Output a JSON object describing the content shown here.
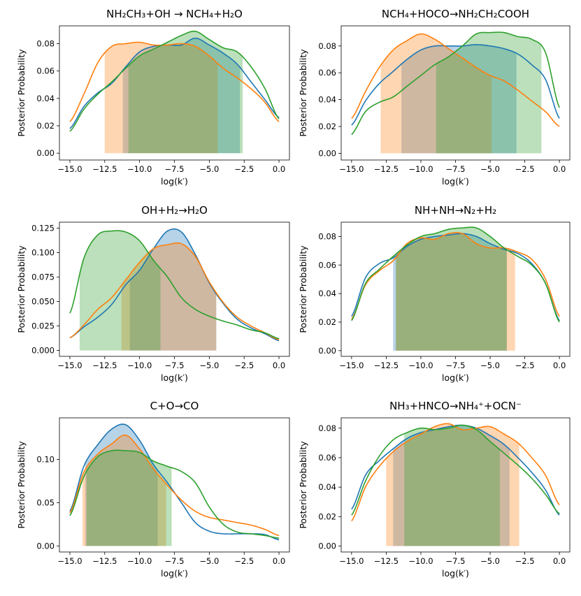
{
  "figure_name": "Posterior probability distributions of log(k') for six reactions",
  "colors": {
    "blue": "#1f77b4",
    "orange": "#ff7f0e",
    "green": "#2ca02c"
  },
  "chart_data": [
    {
      "type": "area",
      "title": "NH₂CH₃+OH → NCH₄+H₂O",
      "xlabel": "log(k′)",
      "ylabel": "Posterior Probability",
      "xlim": [
        -15.75,
        0.75
      ],
      "ylim": [
        -0.005,
        0.093
      ],
      "xticks": [
        -15.0,
        -12.5,
        -10.0,
        -7.5,
        -5.0,
        -2.5,
        0.0
      ],
      "xtick_labels": [
        "−15.0",
        "−12.5",
        "−10.0",
        "−7.5",
        "−5.0",
        "−2.5",
        "0.0"
      ],
      "yticks": [
        0.0,
        0.02,
        0.04,
        0.06,
        0.08
      ],
      "ytick_labels": [
        "0.00",
        "0.02",
        "0.04",
        "0.06",
        "0.08"
      ],
      "series": [
        {
          "name": "blue",
          "color": "blue",
          "shade": [
            -11.2,
            -2.8
          ],
          "x": [
            -15,
            -14,
            -13,
            -12,
            -11,
            -10,
            -9,
            -8,
            -7,
            -6,
            -5,
            -4,
            -3,
            -2,
            -1,
            0
          ],
          "y": [
            0.018,
            0.034,
            0.044,
            0.051,
            0.063,
            0.074,
            0.078,
            0.079,
            0.079,
            0.084,
            0.079,
            0.073,
            0.065,
            0.052,
            0.039,
            0.026
          ]
        },
        {
          "name": "orange",
          "color": "orange",
          "shade": [
            -12.5,
            -4.4
          ],
          "x": [
            -15,
            -14,
            -13,
            -12,
            -11,
            -10,
            -9,
            -8,
            -7,
            -6,
            -5,
            -4,
            -3,
            -2,
            -1,
            0
          ],
          "y": [
            0.023,
            0.043,
            0.066,
            0.078,
            0.08,
            0.081,
            0.079,
            0.079,
            0.08,
            0.078,
            0.071,
            0.062,
            0.055,
            0.047,
            0.037,
            0.023
          ]
        },
        {
          "name": "green",
          "color": "green",
          "shade": [
            -10.8,
            -2.6
          ],
          "x": [
            -15,
            -14,
            -13,
            -12,
            -11,
            -10,
            -9,
            -8,
            -7,
            -6,
            -5,
            -4,
            -3,
            -2,
            -1,
            0
          ],
          "y": [
            0.016,
            0.032,
            0.043,
            0.052,
            0.062,
            0.071,
            0.076,
            0.081,
            0.086,
            0.089,
            0.083,
            0.077,
            0.074,
            0.063,
            0.047,
            0.025
          ]
        }
      ]
    },
    {
      "type": "area",
      "title": "NCH₄+HOCO→NH₂CH₂COOH",
      "xlabel": "log(k′)",
      "ylabel": "Posterior Probability",
      "xlim": [
        -15.75,
        0.75
      ],
      "ylim": [
        -0.005,
        0.095
      ],
      "xticks": [
        -15.0,
        -12.5,
        -10.0,
        -7.5,
        -5.0,
        -2.5,
        0.0
      ],
      "xtick_labels": [
        "−15.0",
        "−12.5",
        "−10.0",
        "−7.5",
        "−5.0",
        "−2.5",
        "0.0"
      ],
      "yticks": [
        0.0,
        0.02,
        0.04,
        0.06,
        0.08
      ],
      "ytick_labels": [
        "0.00",
        "0.02",
        "0.04",
        "0.06",
        "0.08"
      ],
      "series": [
        {
          "name": "blue",
          "color": "blue",
          "shade": [
            -11.4,
            -3.1
          ],
          "x": [
            -15,
            -14,
            -13,
            -12,
            -11,
            -10,
            -9,
            -8,
            -7,
            -6,
            -5,
            -4,
            -3,
            -2,
            -1,
            0
          ],
          "y": [
            0.021,
            0.039,
            0.052,
            0.061,
            0.07,
            0.077,
            0.08,
            0.08,
            0.08,
            0.081,
            0.08,
            0.078,
            0.074,
            0.066,
            0.055,
            0.026
          ]
        },
        {
          "name": "orange",
          "color": "orange",
          "shade": [
            -12.9,
            -4.9
          ],
          "x": [
            -15,
            -14,
            -13,
            -12,
            -11,
            -10,
            -9,
            -8,
            -7,
            -6,
            -5,
            -4,
            -3,
            -2,
            -1,
            0
          ],
          "y": [
            0.026,
            0.046,
            0.064,
            0.077,
            0.084,
            0.089,
            0.085,
            0.078,
            0.071,
            0.064,
            0.058,
            0.054,
            0.047,
            0.039,
            0.031,
            0.02
          ]
        },
        {
          "name": "green",
          "color": "green",
          "shade": [
            -8.9,
            -1.3
          ],
          "x": [
            -15,
            -14,
            -13,
            -12,
            -11,
            -10,
            -9,
            -8,
            -7,
            -6,
            -5,
            -4,
            -3,
            -2,
            -1,
            0
          ],
          "y": [
            0.014,
            0.031,
            0.038,
            0.042,
            0.05,
            0.058,
            0.066,
            0.072,
            0.08,
            0.089,
            0.09,
            0.09,
            0.087,
            0.085,
            0.075,
            0.034
          ]
        }
      ]
    },
    {
      "type": "area",
      "title": "OH+H₂→H₂O",
      "xlabel": "log(k′)",
      "ylabel": "Posterior Probability",
      "xlim": [
        -15.75,
        0.75
      ],
      "ylim": [
        -0.006,
        0.131
      ],
      "xticks": [
        -15.0,
        -12.5,
        -10.0,
        -7.5,
        -5.0,
        -2.5,
        0.0
      ],
      "xtick_labels": [
        "−15.0",
        "−12.5",
        "−10.0",
        "−7.5",
        "−5.0",
        "−2.5",
        "0.0"
      ],
      "yticks": [
        0.0,
        0.025,
        0.05,
        0.075,
        0.1,
        0.125
      ],
      "ytick_labels": [
        "0.000",
        "0.025",
        "0.050",
        "0.075",
        "0.100",
        "0.125"
      ],
      "series": [
        {
          "name": "blue",
          "color": "blue",
          "shade": [
            -10.7,
            -4.5
          ],
          "x": [
            -15,
            -14,
            -13,
            -12,
            -11,
            -10,
            -9,
            -8,
            -7,
            -6,
            -5,
            -4,
            -3,
            -2,
            -1,
            0
          ],
          "y": [
            0.013,
            0.024,
            0.034,
            0.047,
            0.067,
            0.082,
            0.104,
            0.122,
            0.121,
            0.098,
            0.069,
            0.048,
            0.032,
            0.023,
            0.017,
            0.01
          ]
        },
        {
          "name": "orange",
          "color": "orange",
          "shade": [
            -11.3,
            -4.5
          ],
          "x": [
            -15,
            -14,
            -13,
            -12,
            -11,
            -10,
            -9,
            -8,
            -7,
            -6,
            -5,
            -4,
            -3,
            -2,
            -1,
            0
          ],
          "y": [
            0.013,
            0.026,
            0.042,
            0.054,
            0.072,
            0.09,
            0.104,
            0.108,
            0.109,
            0.096,
            0.07,
            0.049,
            0.034,
            0.025,
            0.018,
            0.011
          ]
        },
        {
          "name": "green",
          "color": "green",
          "shade": [
            -14.3,
            -8.5
          ],
          "x": [
            -15,
            -14,
            -13,
            -12,
            -11,
            -10,
            -9,
            -8,
            -7,
            -6,
            -5,
            -4,
            -3,
            -2,
            -1,
            0
          ],
          "y": [
            0.038,
            0.094,
            0.118,
            0.122,
            0.121,
            0.112,
            0.092,
            0.075,
            0.054,
            0.042,
            0.035,
            0.03,
            0.026,
            0.021,
            0.018,
            0.012
          ]
        }
      ]
    },
    {
      "type": "area",
      "title": "NH+NH→N₂+H₂",
      "xlabel": "log(k′)",
      "ylabel": "Posterior Probability",
      "xlim": [
        -15.75,
        0.75
      ],
      "ylim": [
        -0.004,
        0.09
      ],
      "xticks": [
        -15.0,
        -12.5,
        -10.0,
        -7.5,
        -5.0,
        -2.5,
        0.0
      ],
      "xtick_labels": [
        "−15.0",
        "−12.5",
        "−10.0",
        "−7.5",
        "−5.0",
        "−2.5",
        "0.0"
      ],
      "yticks": [
        0.0,
        0.02,
        0.04,
        0.06,
        0.08
      ],
      "ytick_labels": [
        "0.00",
        "0.02",
        "0.04",
        "0.06",
        "0.08"
      ],
      "series": [
        {
          "name": "blue",
          "color": "blue",
          "shade": [
            -12.0,
            -3.8
          ],
          "x": [
            -15,
            -14,
            -13,
            -12,
            -11,
            -10,
            -9,
            -8,
            -7,
            -6,
            -5,
            -4,
            -3,
            -2,
            -1,
            0
          ],
          "y": [
            0.024,
            0.051,
            0.061,
            0.065,
            0.073,
            0.078,
            0.08,
            0.081,
            0.082,
            0.08,
            0.075,
            0.071,
            0.068,
            0.061,
            0.047,
            0.021
          ]
        },
        {
          "name": "orange",
          "color": "orange",
          "shade": [
            -11.8,
            -3.2
          ],
          "x": [
            -15,
            -14,
            -13,
            -12,
            -11,
            -10,
            -9,
            -8,
            -7,
            -6,
            -5,
            -4,
            -3,
            -2,
            -1,
            0
          ],
          "y": [
            0.022,
            0.046,
            0.056,
            0.063,
            0.075,
            0.079,
            0.078,
            0.082,
            0.082,
            0.075,
            0.072,
            0.072,
            0.069,
            0.064,
            0.05,
            0.024
          ]
        },
        {
          "name": "green",
          "color": "green",
          "shade": [
            -11.8,
            -3.8
          ],
          "x": [
            -15,
            -14,
            -13,
            -12,
            -11,
            -10,
            -9,
            -8,
            -7,
            -6,
            -5,
            -4,
            -3,
            -2,
            -1,
            0
          ],
          "y": [
            0.021,
            0.047,
            0.057,
            0.066,
            0.074,
            0.08,
            0.082,
            0.085,
            0.086,
            0.086,
            0.08,
            0.072,
            0.066,
            0.06,
            0.047,
            0.02
          ]
        }
      ]
    },
    {
      "type": "area",
      "title": "C+O→CO",
      "xlabel": "log(k′)",
      "ylabel": "Posterior Probability",
      "xlim": [
        -15.75,
        0.75
      ],
      "ylim": [
        -0.007,
        0.148
      ],
      "xticks": [
        -15.0,
        -12.5,
        -10.0,
        -7.5,
        -5.0,
        -2.5,
        0.0
      ],
      "xtick_labels": [
        "−15.0",
        "−12.5",
        "−10.0",
        "−7.5",
        "−5.0",
        "−2.5",
        "0.0"
      ],
      "yticks": [
        0.0,
        0.05,
        0.1
      ],
      "ytick_labels": [
        "0.00",
        "0.05",
        "0.10"
      ],
      "series": [
        {
          "name": "blue",
          "color": "blue",
          "shade": [
            -13.9,
            -8.7
          ],
          "x": [
            -15,
            -14,
            -13,
            -12,
            -11,
            -10,
            -9,
            -8,
            -7,
            -6,
            -5,
            -4,
            -3,
            -2,
            -1,
            0
          ],
          "y": [
            0.04,
            0.092,
            0.117,
            0.135,
            0.14,
            0.122,
            0.094,
            0.073,
            0.05,
            0.027,
            0.017,
            0.014,
            0.014,
            0.014,
            0.013,
            0.007
          ]
        },
        {
          "name": "orange",
          "color": "orange",
          "shade": [
            -14.1,
            -8.1
          ],
          "x": [
            -15,
            -14,
            -13,
            -12,
            -11,
            -10,
            -9,
            -8,
            -7,
            -6,
            -5,
            -4,
            -3,
            -2,
            -1,
            0
          ],
          "y": [
            0.038,
            0.085,
            0.106,
            0.118,
            0.128,
            0.112,
            0.089,
            0.07,
            0.053,
            0.04,
            0.033,
            0.03,
            0.027,
            0.024,
            0.019,
            0.012
          ]
        },
        {
          "name": "green",
          "color": "green",
          "shade": [
            -13.8,
            -7.7
          ],
          "x": [
            -15,
            -14,
            -13,
            -12,
            -11,
            -10,
            -9,
            -8,
            -7,
            -6,
            -5,
            -4,
            -3,
            -2,
            -1,
            0
          ],
          "y": [
            0.035,
            0.08,
            0.103,
            0.11,
            0.11,
            0.108,
            0.098,
            0.092,
            0.086,
            0.073,
            0.045,
            0.025,
            0.016,
            0.014,
            0.012,
            0.009
          ]
        }
      ]
    },
    {
      "type": "area",
      "title": "NH₃+HNCO→NH₄⁺+OCN⁻",
      "xlabel": "log(k′)",
      "ylabel": "Posterior Probability",
      "xlim": [
        -15.75,
        0.75
      ],
      "ylim": [
        -0.004,
        0.087
      ],
      "xticks": [
        -15.0,
        -12.5,
        -10.0,
        -7.5,
        -5.0,
        -2.5,
        0.0
      ],
      "xtick_labels": [
        "−15.0",
        "−12.5",
        "−10.0",
        "−7.5",
        "−5.0",
        "−2.5",
        "0.0"
      ],
      "yticks": [
        0.0,
        0.02,
        0.04,
        0.06,
        0.08
      ],
      "ytick_labels": [
        "0.00",
        "0.02",
        "0.04",
        "0.06",
        "0.08"
      ],
      "series": [
        {
          "name": "blue",
          "color": "blue",
          "shade": [
            -12.0,
            -3.6
          ],
          "x": [
            -15,
            -14,
            -13,
            -12,
            -11,
            -10,
            -9,
            -8,
            -7,
            -6,
            -5,
            -4,
            -3,
            -2,
            -1,
            0
          ],
          "y": [
            0.025,
            0.048,
            0.058,
            0.066,
            0.073,
            0.077,
            0.079,
            0.081,
            0.082,
            0.08,
            0.075,
            0.069,
            0.06,
            0.05,
            0.038,
            0.021
          ]
        },
        {
          "name": "orange",
          "color": "orange",
          "shade": [
            -12.5,
            -2.9
          ],
          "x": [
            -15,
            -14,
            -13,
            -12,
            -11,
            -10,
            -9,
            -8,
            -7,
            -6,
            -5,
            -4,
            -3,
            -2,
            -1,
            0
          ],
          "y": [
            0.017,
            0.04,
            0.054,
            0.064,
            0.071,
            0.076,
            0.081,
            0.083,
            0.079,
            0.08,
            0.081,
            0.076,
            0.07,
            0.06,
            0.048,
            0.028
          ]
        },
        {
          "name": "green",
          "color": "green",
          "shade": [
            -11.2,
            -4.3
          ],
          "x": [
            -15,
            -14,
            -13,
            -12,
            -11,
            -10,
            -9,
            -8,
            -7,
            -6,
            -5,
            -4,
            -3,
            -2,
            -1,
            0
          ],
          "y": [
            0.021,
            0.044,
            0.061,
            0.072,
            0.077,
            0.08,
            0.079,
            0.08,
            0.082,
            0.079,
            0.071,
            0.063,
            0.055,
            0.046,
            0.035,
            0.022
          ]
        }
      ]
    }
  ]
}
